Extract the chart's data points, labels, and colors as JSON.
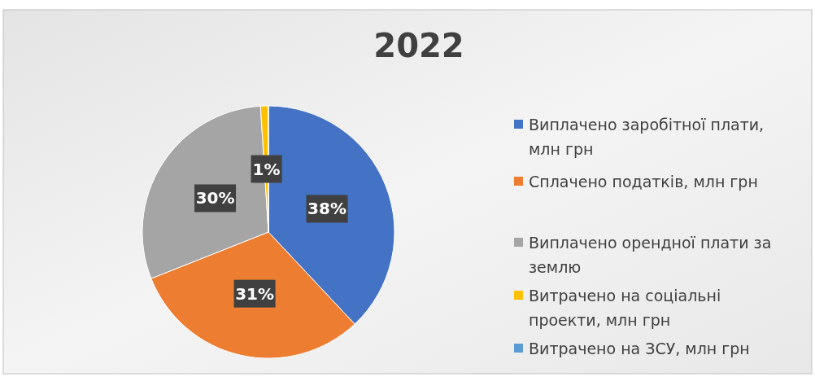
{
  "chart_data": {
    "type": "pie",
    "title": "2022",
    "categories": [
      "Виплачено заробітної плати, млн грн",
      "Сплачено податків, млн грн",
      "Виплачено орендної плати за землю",
      "Витрачено на соціальні проекти, млн грн",
      "Витрачено на ЗСУ, млн грн"
    ],
    "values": [
      38,
      31,
      30,
      1,
      0
    ],
    "colors": [
      "#4472c4",
      "#ed7d31",
      "#a5a5a5",
      "#ffc000",
      "#5b9bd5"
    ],
    "value_labels": [
      "38%",
      "31%",
      "30%",
      "1%",
      null
    ],
    "legend": "right"
  }
}
